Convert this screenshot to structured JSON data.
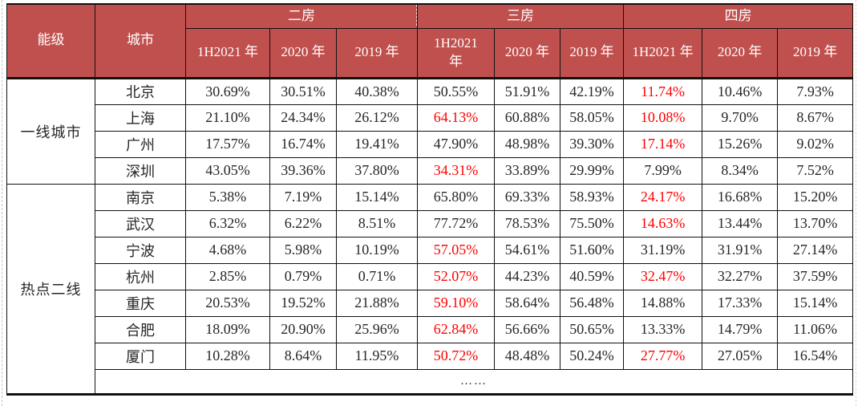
{
  "colors": {
    "header_bg": "#C0504D",
    "header_text": "#FFFFFF",
    "body_text": "#262626",
    "highlight_red": "#FE0000",
    "grid_line": "#111111"
  },
  "table": {
    "header": {
      "col_level": "能级",
      "col_city": "城市",
      "groups": [
        {
          "label": "二房",
          "cols": [
            "1H2021 年",
            "2020 年",
            "2019 年"
          ]
        },
        {
          "label": "三房",
          "cols": [
            "1H2021\n年",
            "2020 年",
            "2019 年"
          ]
        },
        {
          "label": "四房",
          "cols": [
            "1H2021 年",
            "2020 年",
            "2019 年"
          ]
        }
      ]
    },
    "tiers": [
      {
        "label": "一线城市",
        "rows": [
          {
            "city": "北京",
            "values": [
              "30.69%",
              "30.51%",
              "40.38%",
              "50.55%",
              "51.91%",
              "42.19%",
              "11.74%",
              "10.46%",
              "7.93%"
            ],
            "red_indices": [
              6
            ]
          },
          {
            "city": "上海",
            "values": [
              "21.10%",
              "24.34%",
              "26.12%",
              "64.13%",
              "60.88%",
              "58.05%",
              "10.08%",
              "9.70%",
              "8.67%"
            ],
            "red_indices": [
              3,
              6
            ]
          },
          {
            "city": "广州",
            "values": [
              "17.57%",
              "16.74%",
              "19.41%",
              "47.90%",
              "48.98%",
              "39.30%",
              "17.14%",
              "15.26%",
              "9.02%"
            ],
            "red_indices": [
              6
            ]
          },
          {
            "city": "深圳",
            "values": [
              "43.05%",
              "39.36%",
              "37.80%",
              "34.31%",
              "33.89%",
              "29.99%",
              "7.99%",
              "8.34%",
              "7.52%"
            ],
            "red_indices": [
              3
            ]
          }
        ]
      },
      {
        "label": "热点二线",
        "rows": [
          {
            "city": "南京",
            "values": [
              "5.38%",
              "7.19%",
              "15.14%",
              "65.80%",
              "69.33%",
              "58.93%",
              "24.17%",
              "16.68%",
              "15.20%"
            ],
            "red_indices": [
              6
            ]
          },
          {
            "city": "武汉",
            "values": [
              "6.32%",
              "6.22%",
              "8.51%",
              "77.72%",
              "78.53%",
              "75.50%",
              "14.63%",
              "13.44%",
              "13.70%"
            ],
            "red_indices": [
              6
            ]
          },
          {
            "city": "宁波",
            "values": [
              "4.68%",
              "5.98%",
              "10.19%",
              "57.05%",
              "54.61%",
              "51.60%",
              "31.19%",
              "31.91%",
              "27.14%"
            ],
            "red_indices": [
              3
            ]
          },
          {
            "city": "杭州",
            "values": [
              "2.85%",
              "0.79%",
              "0.71%",
              "52.07%",
              "44.23%",
              "40.59%",
              "32.47%",
              "32.27%",
              "37.59%"
            ],
            "red_indices": [
              3,
              6
            ]
          },
          {
            "city": "重庆",
            "values": [
              "20.53%",
              "19.52%",
              "21.88%",
              "59.10%",
              "58.64%",
              "56.48%",
              "14.88%",
              "17.33%",
              "15.14%"
            ],
            "red_indices": [
              3
            ]
          },
          {
            "city": "合肥",
            "values": [
              "18.09%",
              "20.90%",
              "25.96%",
              "62.84%",
              "56.66%",
              "50.65%",
              "13.33%",
              "14.79%",
              "11.06%"
            ],
            "red_indices": [
              3
            ]
          },
          {
            "city": "厦门",
            "values": [
              "10.28%",
              "8.64%",
              "11.95%",
              "50.72%",
              "48.48%",
              "50.24%",
              "27.77%",
              "27.05%",
              "16.54%"
            ],
            "red_indices": [
              3,
              6
            ]
          }
        ]
      }
    ],
    "ellipsis_row": "……"
  }
}
